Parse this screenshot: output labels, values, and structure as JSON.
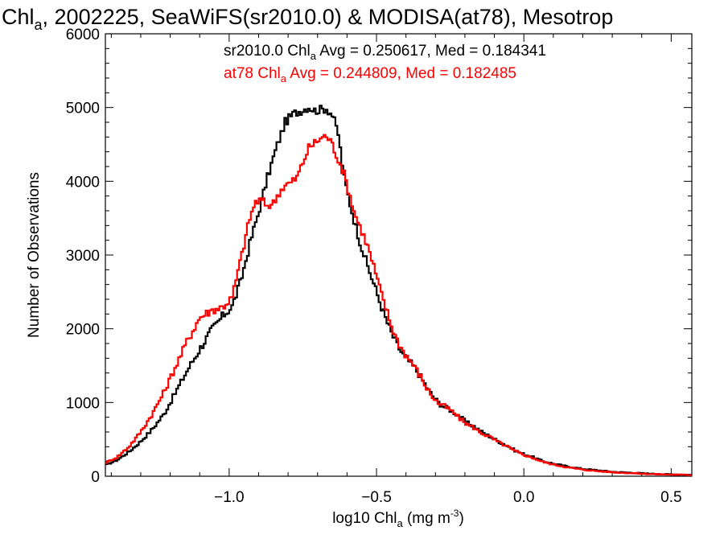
{
  "chart_data": {
    "type": "line",
    "title": {
      "main": "Chl",
      "sub": "a",
      "rest": ", 2002225, SeaWiFS(sr2010.0) & MODISA(at78), Mesotrop"
    },
    "xlabel": {
      "main": "log10 Chl",
      "sub": "a",
      "rest": " (mg m",
      "sup": "-3",
      "end": ")"
    },
    "ylabel": "Number of Observations",
    "xlim": [
      -1.42,
      0.57
    ],
    "ylim": [
      0,
      6000
    ],
    "xticks": [
      -1.0,
      -0.5,
      0.0,
      0.5
    ],
    "xtick_labels": [
      "−1.0",
      "−0.5",
      "0.0",
      "0.5"
    ],
    "yticks": [
      0,
      1000,
      2000,
      3000,
      4000,
      5000,
      6000
    ],
    "ytick_labels": [
      "0",
      "1000",
      "2000",
      "3000",
      "4000",
      "5000",
      "6000"
    ],
    "stats": [
      {
        "series": "sr2010.0",
        "color": "#000000",
        "prefix": "sr2010.0 Chl",
        "sub": "a",
        "suffix": " Avg = 0.250617, Med = 0.184341"
      },
      {
        "series": "at78",
        "color": "#ff0000",
        "prefix": "at78 Chl",
        "sub": "a",
        "suffix": " Avg = 0.244809, Med = 0.182485"
      }
    ],
    "series": [
      {
        "name": "sr2010.0",
        "color": "#000000",
        "points": [
          [
            -1.42,
            150
          ],
          [
            -1.38,
            220
          ],
          [
            -1.34,
            330
          ],
          [
            -1.3,
            470
          ],
          [
            -1.26,
            640
          ],
          [
            -1.22,
            850
          ],
          [
            -1.18,
            1150
          ],
          [
            -1.14,
            1450
          ],
          [
            -1.1,
            1720
          ],
          [
            -1.06,
            1980
          ],
          [
            -1.02,
            2180
          ],
          [
            -0.99,
            2300
          ],
          [
            -0.96,
            2650
          ],
          [
            -0.93,
            3150
          ],
          [
            -0.9,
            3580
          ],
          [
            -0.87,
            4050
          ],
          [
            -0.84,
            4450
          ],
          [
            -0.81,
            4800
          ],
          [
            -0.78,
            4920
          ],
          [
            -0.75,
            4970
          ],
          [
            -0.73,
            5010
          ],
          [
            -0.71,
            4960
          ],
          [
            -0.69,
            4970
          ],
          [
            -0.67,
            4990
          ],
          [
            -0.65,
            4900
          ],
          [
            -0.63,
            4650
          ],
          [
            -0.61,
            4050
          ],
          [
            -0.59,
            3700
          ],
          [
            -0.57,
            3380
          ],
          [
            -0.55,
            3100
          ],
          [
            -0.53,
            2850
          ],
          [
            -0.51,
            2620
          ],
          [
            -0.49,
            2380
          ],
          [
            -0.47,
            2150
          ],
          [
            -0.45,
            1950
          ],
          [
            -0.43,
            1780
          ],
          [
            -0.41,
            1650
          ],
          [
            -0.39,
            1560
          ],
          [
            -0.37,
            1470
          ],
          [
            -0.35,
            1350
          ],
          [
            -0.33,
            1210
          ],
          [
            -0.31,
            1090
          ],
          [
            -0.29,
            1000
          ],
          [
            -0.27,
            940
          ],
          [
            -0.25,
            900
          ],
          [
            -0.23,
            850
          ],
          [
            -0.21,
            780
          ],
          [
            -0.19,
            720
          ],
          [
            -0.17,
            680
          ],
          [
            -0.15,
            620
          ],
          [
            -0.13,
            570
          ],
          [
            -0.11,
            530
          ],
          [
            -0.09,
            480
          ],
          [
            -0.07,
            440
          ],
          [
            -0.05,
            400
          ],
          [
            -0.03,
            350
          ],
          [
            0.0,
            300
          ],
          [
            0.03,
            260
          ],
          [
            0.06,
            210
          ],
          [
            0.1,
            170
          ],
          [
            0.15,
            130
          ],
          [
            0.2,
            100
          ],
          [
            0.25,
            80
          ],
          [
            0.3,
            60
          ],
          [
            0.35,
            50
          ],
          [
            0.4,
            40
          ],
          [
            0.45,
            30
          ],
          [
            0.5,
            25
          ],
          [
            0.57,
            20
          ]
        ]
      },
      {
        "name": "at78",
        "color": "#ff0000",
        "points": [
          [
            -1.42,
            180
          ],
          [
            -1.38,
            260
          ],
          [
            -1.34,
            400
          ],
          [
            -1.3,
            600
          ],
          [
            -1.26,
            850
          ],
          [
            -1.22,
            1150
          ],
          [
            -1.18,
            1500
          ],
          [
            -1.14,
            1850
          ],
          [
            -1.1,
            2150
          ],
          [
            -1.06,
            2250
          ],
          [
            -1.02,
            2300
          ],
          [
            -0.99,
            2420
          ],
          [
            -0.96,
            2950
          ],
          [
            -0.93,
            3500
          ],
          [
            -0.91,
            3720
          ],
          [
            -0.89,
            3740
          ],
          [
            -0.87,
            3670
          ],
          [
            -0.85,
            3700
          ],
          [
            -0.83,
            3850
          ],
          [
            -0.81,
            3950
          ],
          [
            -0.79,
            3980
          ],
          [
            -0.77,
            4050
          ],
          [
            -0.75,
            4250
          ],
          [
            -0.73,
            4450
          ],
          [
            -0.71,
            4520
          ],
          [
            -0.69,
            4580
          ],
          [
            -0.67,
            4620
          ],
          [
            -0.65,
            4500
          ],
          [
            -0.63,
            4300
          ],
          [
            -0.61,
            4100
          ],
          [
            -0.59,
            3800
          ],
          [
            -0.57,
            3520
          ],
          [
            -0.55,
            3330
          ],
          [
            -0.53,
            3120
          ],
          [
            -0.51,
            2850
          ],
          [
            -0.49,
            2560
          ],
          [
            -0.47,
            2300
          ],
          [
            -0.45,
            2050
          ],
          [
            -0.43,
            1850
          ],
          [
            -0.41,
            1700
          ],
          [
            -0.39,
            1590
          ],
          [
            -0.37,
            1480
          ],
          [
            -0.35,
            1350
          ],
          [
            -0.33,
            1200
          ],
          [
            -0.31,
            1080
          ],
          [
            -0.29,
            990
          ],
          [
            -0.27,
            950
          ],
          [
            -0.25,
            900
          ],
          [
            -0.23,
            830
          ],
          [
            -0.21,
            760
          ],
          [
            -0.19,
            700
          ],
          [
            -0.17,
            660
          ],
          [
            -0.15,
            600
          ],
          [
            -0.13,
            560
          ],
          [
            -0.11,
            520
          ],
          [
            -0.09,
            470
          ],
          [
            -0.07,
            430
          ],
          [
            -0.05,
            390
          ],
          [
            -0.03,
            340
          ],
          [
            0.0,
            290
          ],
          [
            0.03,
            250
          ],
          [
            0.06,
            200
          ],
          [
            0.1,
            160
          ],
          [
            0.15,
            120
          ],
          [
            0.2,
            90
          ],
          [
            0.25,
            70
          ],
          [
            0.3,
            55
          ],
          [
            0.35,
            45
          ],
          [
            0.4,
            35
          ],
          [
            0.45,
            28
          ],
          [
            0.5,
            22
          ],
          [
            0.57,
            18
          ]
        ]
      }
    ]
  }
}
